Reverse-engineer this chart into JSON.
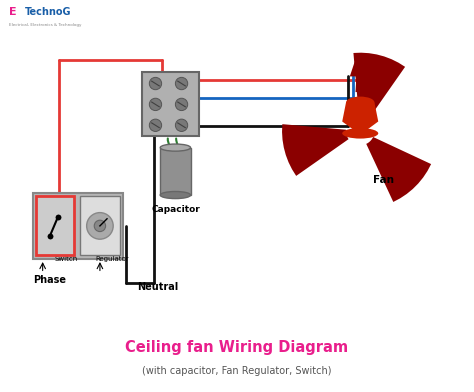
{
  "title": "Ceiling fan Wiring Diagram",
  "subtitle": "(with capacitor, Fan Regulator, Switch)",
  "background_color": "#ffffff",
  "title_color": "#e91e8c",
  "subtitle_color": "#555555",
  "logo_color_E": "#e91e8c",
  "logo_color_rest": "#1a5fa8",
  "switch_box_color": "#b8b8b8",
  "terminal_box_color": "#b0b0b0",
  "capacitor_body_color": "#909090",
  "capacitor_top_color": "#aaaaaa",
  "fan_color": "#8b0000",
  "fan_motor_color": "#cc2200",
  "wire_red": "#e53935",
  "wire_black": "#111111",
  "wire_blue": "#1565c0",
  "wire_green": "#2e7d32",
  "label_phase": "Phase",
  "label_switch": "Switch",
  "label_regulator": "Regulator",
  "label_neutral": "Neutral",
  "label_capacitor": "Capacitor",
  "label_fan": "Fan"
}
